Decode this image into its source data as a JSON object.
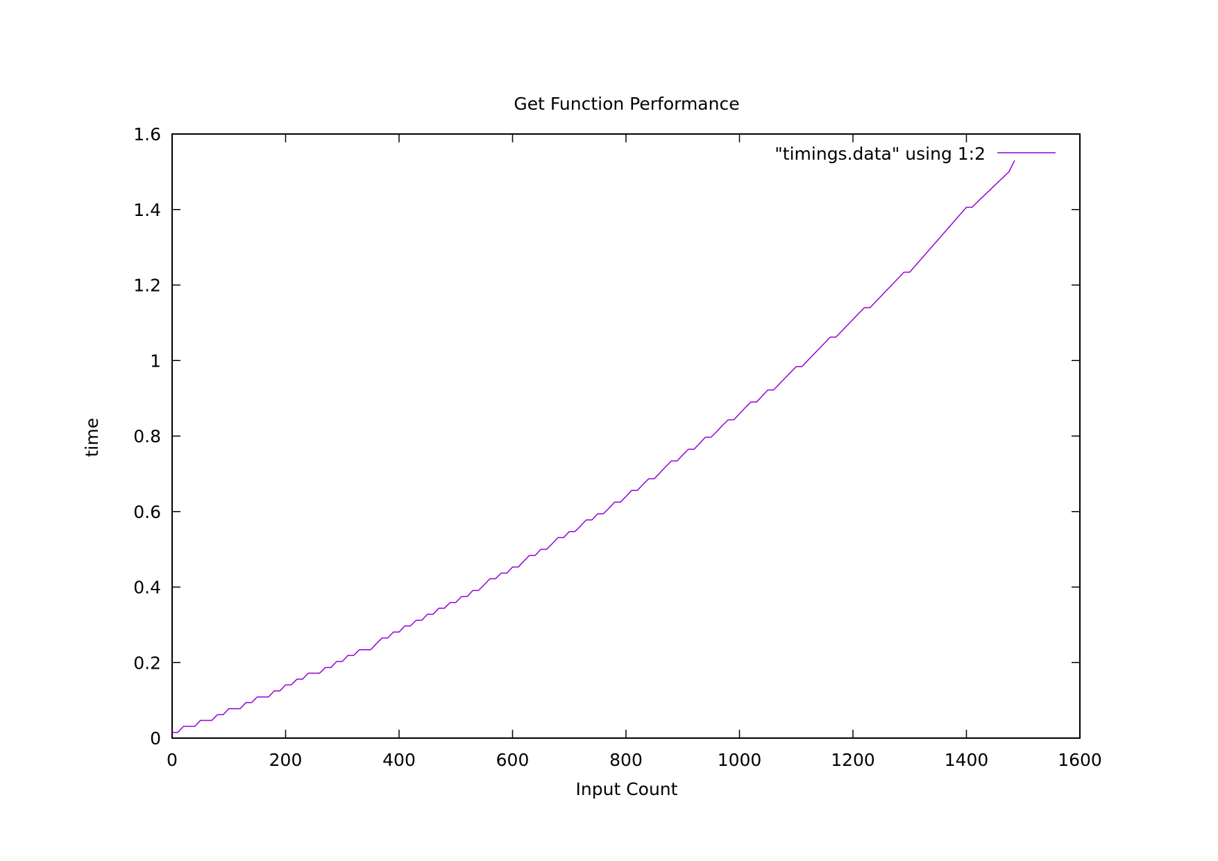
{
  "chart_data": {
    "type": "line",
    "title": "Get Function Performance",
    "xlabel": "Input Count",
    "ylabel": "time",
    "xlim": [
      0,
      1600
    ],
    "ylim": [
      0,
      1.6
    ],
    "xticks": [
      0,
      200,
      400,
      600,
      800,
      1000,
      1200,
      1400,
      1600
    ],
    "yticks": [
      0,
      0.2,
      0.4,
      0.6,
      0.8,
      1,
      1.2,
      1.4,
      1.6
    ],
    "xtick_labels": [
      "0",
      "200",
      "400",
      "600",
      "800",
      "1000",
      "1200",
      "1400",
      "1600"
    ],
    "ytick_labels": [
      "0",
      "0.2",
      "0.4",
      "0.6",
      "0.8",
      "1",
      "1.2",
      "1.4",
      "1.6"
    ],
    "grid": false,
    "legend_position": "top-right",
    "series": [
      {
        "name": "\"timings.data\" using 1:2",
        "color": "#9400d3",
        "x": [
          0,
          10,
          20,
          40,
          50,
          70,
          80,
          90,
          100,
          120,
          130,
          140,
          150,
          170,
          180,
          190,
          200,
          210,
          220,
          230,
          240,
          260,
          270,
          280,
          290,
          300,
          310,
          320,
          330,
          350,
          360,
          370,
          380,
          390,
          400,
          410,
          420,
          430,
          440,
          450,
          460,
          470,
          480,
          490,
          500,
          510,
          520,
          530,
          540,
          550,
          560,
          570,
          580,
          590,
          600,
          610,
          620,
          630,
          640,
          650,
          660,
          670,
          680,
          690,
          700,
          710,
          720,
          730,
          740,
          750,
          760,
          770,
          780,
          790,
          800,
          810,
          820,
          830,
          840,
          850,
          860,
          870,
          880,
          890,
          900,
          910,
          920,
          930,
          940,
          950,
          960,
          970,
          980,
          990,
          1000,
          1010,
          1020,
          1030,
          1040,
          1050,
          1060,
          1100,
          1110,
          1160,
          1170,
          1220,
          1230,
          1290,
          1300,
          1400,
          1410,
          1420,
          1475,
          1480,
          1485
        ],
        "y": [
          0.015,
          0.015,
          0.031,
          0.031,
          0.047,
          0.047,
          0.062,
          0.062,
          0.078,
          0.078,
          0.094,
          0.094,
          0.109,
          0.109,
          0.125,
          0.125,
          0.141,
          0.141,
          0.156,
          0.156,
          0.172,
          0.172,
          0.187,
          0.187,
          0.203,
          0.203,
          0.219,
          0.219,
          0.234,
          0.234,
          0.25,
          0.265,
          0.265,
          0.281,
          0.281,
          0.297,
          0.297,
          0.312,
          0.312,
          0.328,
          0.328,
          0.344,
          0.344,
          0.359,
          0.359,
          0.375,
          0.375,
          0.391,
          0.391,
          0.406,
          0.422,
          0.422,
          0.437,
          0.437,
          0.453,
          0.453,
          0.469,
          0.484,
          0.484,
          0.5,
          0.5,
          0.515,
          0.531,
          0.531,
          0.547,
          0.547,
          0.562,
          0.578,
          0.578,
          0.594,
          0.594,
          0.609,
          0.625,
          0.625,
          0.64,
          0.656,
          0.656,
          0.672,
          0.687,
          0.687,
          0.703,
          0.719,
          0.734,
          0.734,
          0.75,
          0.765,
          0.765,
          0.781,
          0.797,
          0.797,
          0.812,
          0.828,
          0.843,
          0.843,
          0.859,
          0.875,
          0.89,
          0.89,
          0.906,
          0.922,
          0.922,
          0.984,
          0.984,
          1.062,
          1.062,
          1.14,
          1.14,
          1.234,
          1.234,
          1.406,
          1.406,
          1.421,
          1.5,
          1.515,
          1.53
        ]
      }
    ]
  }
}
